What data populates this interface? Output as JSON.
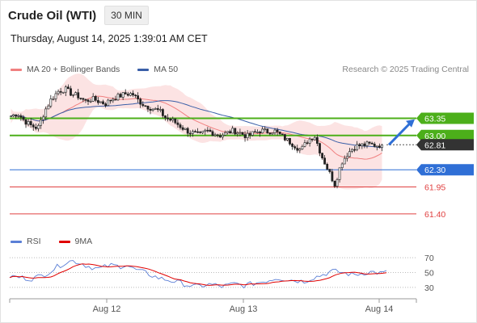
{
  "header": {
    "title": "Crude Oil (WTI)",
    "timeframe": "30 MIN"
  },
  "datetime": "Thursday, August 14, 2025 1:39:01 AM CET",
  "legend": {
    "ma20_label": "MA 20 + Bollinger Bands",
    "ma50_label": "MA 50",
    "ma20_color": "#f08080",
    "ma50_color": "#3a5fa8"
  },
  "credit": "Research © 2025 Trading Central",
  "rsi_legend": {
    "rsi_label": "RSI",
    "ma_label": "9MA",
    "rsi_color": "#5b7fd6",
    "ma_color": "#e00000"
  },
  "chart_data": [
    {
      "type": "candlestick",
      "x_labels": [
        "Aug 12",
        "Aug 13",
        "Aug 14"
      ],
      "price_range": [
        61.15,
        64.2
      ],
      "levels": [
        {
          "value": 63.35,
          "label": "63.35",
          "kind": "resistance",
          "color": "#4caf1a"
        },
        {
          "value": 63.0,
          "label": "63.00",
          "kind": "resistance",
          "color": "#4caf1a"
        },
        {
          "value": 62.81,
          "label": "62.81",
          "kind": "last-price",
          "color": "#333333"
        },
        {
          "value": 62.3,
          "label": "62.30",
          "kind": "pivot",
          "color": "#2f6fd6"
        },
        {
          "value": 61.95,
          "label": "61.95",
          "kind": "support",
          "color": "#e04040"
        },
        {
          "value": 61.4,
          "label": "61.40",
          "kind": "support",
          "color": "#e04040"
        }
      ],
      "close_path": [
        63.4,
        63.45,
        63.3,
        63.2,
        63.15,
        63.5,
        63.75,
        63.9,
        63.95,
        63.85,
        63.8,
        63.7,
        63.75,
        63.7,
        63.65,
        63.75,
        63.8,
        63.85,
        63.85,
        63.7,
        63.6,
        63.55,
        63.5,
        63.35,
        63.3,
        63.2,
        63.1,
        63.05,
        63.0,
        63.1,
        63.05,
        63.0,
        63.05,
        63.1,
        63.05,
        62.98,
        63.05,
        63.1,
        63.08,
        63.1,
        63.0,
        62.9,
        62.8,
        62.7,
        62.9,
        63.0,
        62.6,
        62.3,
        62.0,
        62.45,
        62.65,
        62.78,
        62.8,
        62.82,
        62.8,
        62.81
      ],
      "candle_count": 150
    },
    {
      "type": "line",
      "name": "RSI",
      "y_ticks": [
        70,
        50,
        30
      ],
      "y_range": [
        20,
        80
      ],
      "rsi_path": [
        45,
        44,
        43,
        41,
        44,
        47,
        52,
        58,
        63,
        66,
        64,
        60,
        57,
        55,
        58,
        60,
        58,
        61,
        55,
        52,
        49,
        45,
        42,
        40,
        38,
        36,
        33,
        31,
        32,
        34,
        33,
        31,
        33,
        35,
        32,
        34,
        36,
        38,
        40,
        43,
        41,
        40,
        39,
        38,
        42,
        45,
        48,
        52,
        51,
        49,
        47,
        48,
        50,
        51,
        49,
        50
      ]
    }
  ]
}
